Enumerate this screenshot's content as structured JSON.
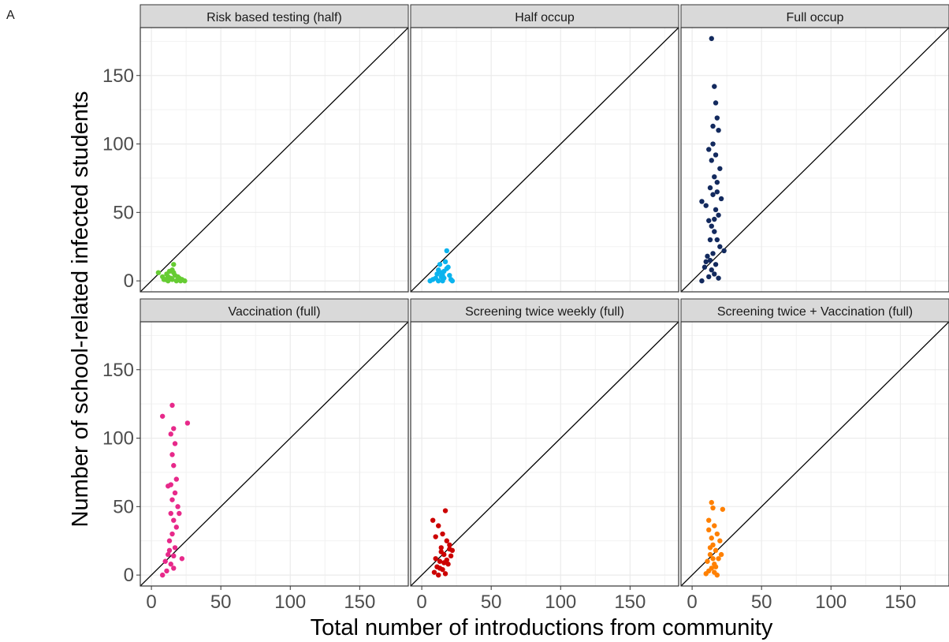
{
  "panel_label": "A",
  "chart_data": {
    "type": "scatter",
    "xlabel": "Total number of introductions from community",
    "ylabel": "Number of school-related infected students",
    "xlim": [
      -8,
      185
    ],
    "ylim": [
      -8,
      185
    ],
    "x_ticks": [
      0,
      50,
      100,
      150
    ],
    "y_ticks": [
      0,
      50,
      100,
      150
    ],
    "grid": true,
    "reference_line": "y = x",
    "facets": [
      {
        "title": "Risk based testing (half)",
        "color": "#66CC33",
        "points": [
          [
            5,
            6
          ],
          [
            8,
            3
          ],
          [
            10,
            1
          ],
          [
            12,
            0
          ],
          [
            14,
            2
          ],
          [
            15,
            8
          ],
          [
            16,
            12
          ],
          [
            17,
            4
          ],
          [
            18,
            0
          ],
          [
            20,
            2
          ],
          [
            22,
            1
          ],
          [
            24,
            0
          ],
          [
            11,
            5
          ],
          [
            13,
            7
          ],
          [
            9,
            1
          ],
          [
            19,
            3
          ],
          [
            21,
            0
          ],
          [
            15,
            1
          ],
          [
            16,
            6
          ],
          [
            12,
            3
          ]
        ]
      },
      {
        "title": "Half occup",
        "color": "#0BB3EE",
        "points": [
          [
            6,
            0
          ],
          [
            8,
            1
          ],
          [
            10,
            2
          ],
          [
            11,
            5
          ],
          [
            12,
            8
          ],
          [
            13,
            12
          ],
          [
            14,
            3
          ],
          [
            15,
            0
          ],
          [
            16,
            7
          ],
          [
            17,
            14
          ],
          [
            18,
            22
          ],
          [
            19,
            10
          ],
          [
            20,
            4
          ],
          [
            21,
            1
          ],
          [
            22,
            0
          ],
          [
            14,
            6
          ],
          [
            16,
            2
          ],
          [
            18,
            9
          ],
          [
            12,
            0
          ],
          [
            15,
            4
          ]
        ]
      },
      {
        "title": "Full occup",
        "color": "#132A5E",
        "points": [
          [
            14,
            177
          ],
          [
            16,
            142
          ],
          [
            17,
            130
          ],
          [
            18,
            119
          ],
          [
            15,
            113
          ],
          [
            19,
            110
          ],
          [
            12,
            96
          ],
          [
            17,
            92
          ],
          [
            14,
            88
          ],
          [
            20,
            82
          ],
          [
            16,
            76
          ],
          [
            18,
            72
          ],
          [
            13,
            68
          ],
          [
            15,
            63
          ],
          [
            7,
            58
          ],
          [
            10,
            55
          ],
          [
            17,
            52
          ],
          [
            19,
            48
          ],
          [
            12,
            44
          ],
          [
            14,
            40
          ],
          [
            16,
            36
          ],
          [
            18,
            30
          ],
          [
            20,
            25
          ],
          [
            23,
            22
          ],
          [
            15,
            20
          ],
          [
            11,
            18
          ],
          [
            13,
            15
          ],
          [
            17,
            12
          ],
          [
            9,
            10
          ],
          [
            14,
            8
          ],
          [
            16,
            5
          ],
          [
            12,
            3
          ],
          [
            7,
            0
          ],
          [
            19,
            2
          ],
          [
            10,
            14
          ],
          [
            21,
            60
          ],
          [
            15,
            100
          ],
          [
            18,
            65
          ],
          [
            13,
            30
          ],
          [
            16,
            45
          ]
        ]
      },
      {
        "title": "Vaccination (full)",
        "color": "#E7298A",
        "points": [
          [
            8,
            116
          ],
          [
            15,
            124
          ],
          [
            26,
            111
          ],
          [
            16,
            107
          ],
          [
            14,
            103
          ],
          [
            17,
            96
          ],
          [
            15,
            88
          ],
          [
            16,
            80
          ],
          [
            18,
            70
          ],
          [
            14,
            66
          ],
          [
            17,
            60
          ],
          [
            15,
            55
          ],
          [
            19,
            50
          ],
          [
            14,
            45
          ],
          [
            16,
            40
          ],
          [
            18,
            35
          ],
          [
            15,
            30
          ],
          [
            13,
            25
          ],
          [
            17,
            20
          ],
          [
            12,
            15
          ],
          [
            10,
            10
          ],
          [
            14,
            8
          ],
          [
            16,
            5
          ],
          [
            11,
            3
          ],
          [
            8,
            0
          ],
          [
            22,
            12
          ],
          [
            13,
            18
          ],
          [
            20,
            45
          ],
          [
            12,
            65
          ],
          [
            16,
            14
          ]
        ]
      },
      {
        "title": "Screening twice weekly (full)",
        "color": "#CC0000",
        "points": [
          [
            17,
            47
          ],
          [
            8,
            40
          ],
          [
            12,
            36
          ],
          [
            15,
            30
          ],
          [
            18,
            25
          ],
          [
            20,
            22
          ],
          [
            14,
            20
          ],
          [
            22,
            18
          ],
          [
            16,
            15
          ],
          [
            10,
            12
          ],
          [
            13,
            10
          ],
          [
            19,
            8
          ],
          [
            11,
            6
          ],
          [
            15,
            4
          ],
          [
            9,
            2
          ],
          [
            12,
            0
          ],
          [
            17,
            1
          ],
          [
            21,
            14
          ],
          [
            14,
            17
          ],
          [
            10,
            28
          ],
          [
            18,
            11
          ],
          [
            13,
            5
          ],
          [
            16,
            9
          ],
          [
            20,
            19
          ]
        ]
      },
      {
        "title": "Screening twice + Vaccination (full)",
        "color": "#FF8000",
        "points": [
          [
            14,
            53
          ],
          [
            15,
            49
          ],
          [
            22,
            48
          ],
          [
            12,
            40
          ],
          [
            16,
            36
          ],
          [
            18,
            30
          ],
          [
            14,
            27
          ],
          [
            20,
            25
          ],
          [
            15,
            22
          ],
          [
            17,
            18
          ],
          [
            13,
            15
          ],
          [
            19,
            12
          ],
          [
            11,
            10
          ],
          [
            16,
            8
          ],
          [
            14,
            5
          ],
          [
            12,
            3
          ],
          [
            10,
            1
          ],
          [
            18,
            0
          ],
          [
            21,
            15
          ],
          [
            13,
            20
          ],
          [
            15,
            12
          ],
          [
            17,
            6
          ],
          [
            12,
            33
          ],
          [
            16,
            2
          ]
        ]
      }
    ]
  }
}
